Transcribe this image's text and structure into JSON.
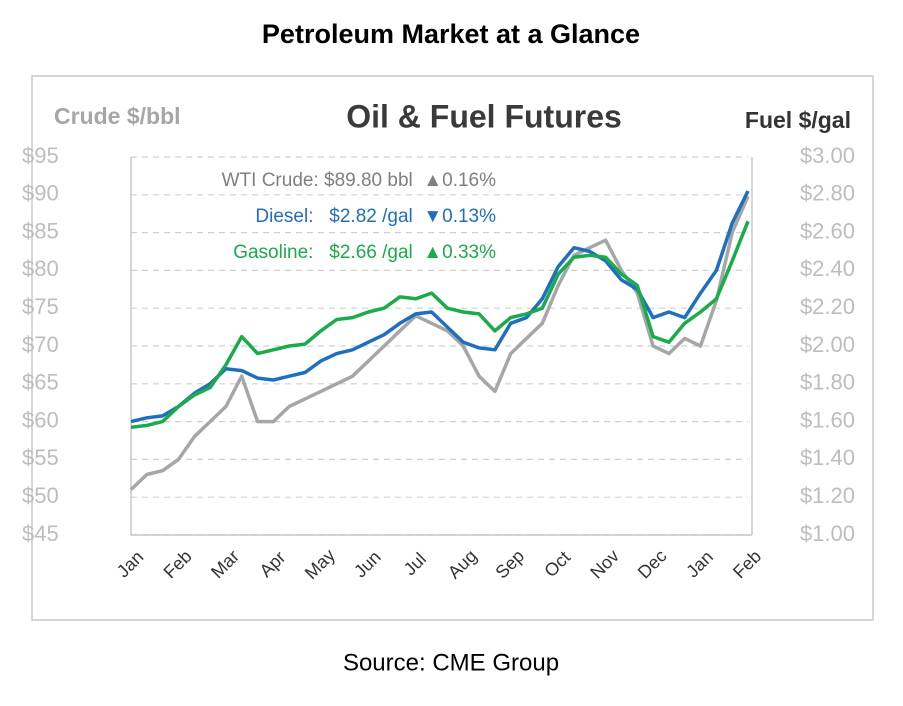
{
  "title": "Petroleum Market at a Glance",
  "source": "Source: CME Group",
  "chart_data": {
    "type": "line",
    "title": "Oil & Fuel Futures",
    "ylabel": "Crude $/bbl",
    "y2label": "Fuel $/gal",
    "categories": [
      "Jan",
      null,
      null,
      "Feb",
      null,
      null,
      "Mar",
      null,
      null,
      "Apr",
      null,
      null,
      "May",
      null,
      null,
      "Jun",
      null,
      null,
      "Jul",
      null,
      null,
      "Aug",
      null,
      null,
      "Sep",
      null,
      null,
      "Oct",
      null,
      null,
      "Nov",
      null,
      null,
      "Dec",
      null,
      null,
      "Jan",
      null,
      null,
      "Feb"
    ],
    "ylim": [
      45,
      95
    ],
    "yticks": [
      {
        "value": 45,
        "label": "$45"
      },
      {
        "value": 50,
        "label": "$50"
      },
      {
        "value": 55,
        "label": "$55"
      },
      {
        "value": 60,
        "label": "$60"
      },
      {
        "value": 65,
        "label": "$65"
      },
      {
        "value": 70,
        "label": "$70"
      },
      {
        "value": 75,
        "label": "$75"
      },
      {
        "value": 80,
        "label": "$80"
      },
      {
        "value": 85,
        "label": "$85"
      },
      {
        "value": 90,
        "label": "$90"
      },
      {
        "value": 95,
        "label": "$95"
      }
    ],
    "y2lim": [
      1.0,
      3.0
    ],
    "y2ticks": [
      {
        "value": 1.0,
        "label": "$1.00"
      },
      {
        "value": 1.2,
        "label": "$1.20"
      },
      {
        "value": 1.4,
        "label": "$1.40"
      },
      {
        "value": 1.6,
        "label": "$1.60"
      },
      {
        "value": 1.8,
        "label": "$1.80"
      },
      {
        "value": 2.0,
        "label": "$2.00"
      },
      {
        "value": 2.2,
        "label": "$2.20"
      },
      {
        "value": 2.4,
        "label": "$2.40"
      },
      {
        "value": 2.6,
        "label": "$2.60"
      },
      {
        "value": 2.8,
        "label": "$2.80"
      },
      {
        "value": 3.0,
        "label": "$3.00"
      }
    ],
    "grid": true,
    "series": [
      {
        "name": "WTI Crude",
        "color": "#a6a6a6",
        "axis": "y",
        "values": [
          51,
          53,
          53.5,
          55,
          58,
          60,
          62,
          66,
          60,
          60,
          62,
          63,
          64,
          65,
          66,
          68,
          70,
          72,
          74,
          73,
          72,
          70,
          66,
          64,
          69,
          71,
          73,
          78,
          82,
          83,
          84,
          80,
          77,
          70,
          69,
          71,
          70,
          76,
          85,
          89.8
        ]
      },
      {
        "name": "Diesel",
        "color": "#1f6fc0",
        "axis": "y2",
        "values": [
          1.6,
          1.62,
          1.63,
          1.68,
          1.75,
          1.8,
          1.88,
          1.87,
          1.83,
          1.82,
          1.84,
          1.86,
          1.92,
          1.96,
          1.98,
          2.02,
          2.06,
          2.12,
          2.17,
          2.18,
          2.1,
          2.02,
          1.99,
          1.98,
          2.12,
          2.15,
          2.25,
          2.42,
          2.52,
          2.5,
          2.45,
          2.35,
          2.3,
          2.15,
          2.18,
          2.15,
          2.28,
          2.4,
          2.65,
          2.82
        ]
      },
      {
        "name": "Gasoline",
        "color": "#1aab4b",
        "axis": "y2",
        "values": [
          1.57,
          1.58,
          1.6,
          1.68,
          1.74,
          1.78,
          1.9,
          2.05,
          1.96,
          1.98,
          2.0,
          2.01,
          2.08,
          2.14,
          2.15,
          2.18,
          2.2,
          2.26,
          2.25,
          2.28,
          2.2,
          2.18,
          2.17,
          2.08,
          2.15,
          2.17,
          2.2,
          2.38,
          2.47,
          2.48,
          2.47,
          2.38,
          2.32,
          2.05,
          2.02,
          2.12,
          2.18,
          2.25,
          2.45,
          2.66
        ]
      }
    ],
    "annotations": [
      {
        "text": "WTI Crude: $89.80 bbl  ▲0.16%",
        "color": "#7f7f7f"
      },
      {
        "text": "Diesel:   $2.82 /gal  ▼0.13%",
        "color": "#1f6fc0"
      },
      {
        "text": "Gasoline:   $2.66 /gal  ▲0.33%",
        "color": "#1aab4b"
      }
    ]
  }
}
